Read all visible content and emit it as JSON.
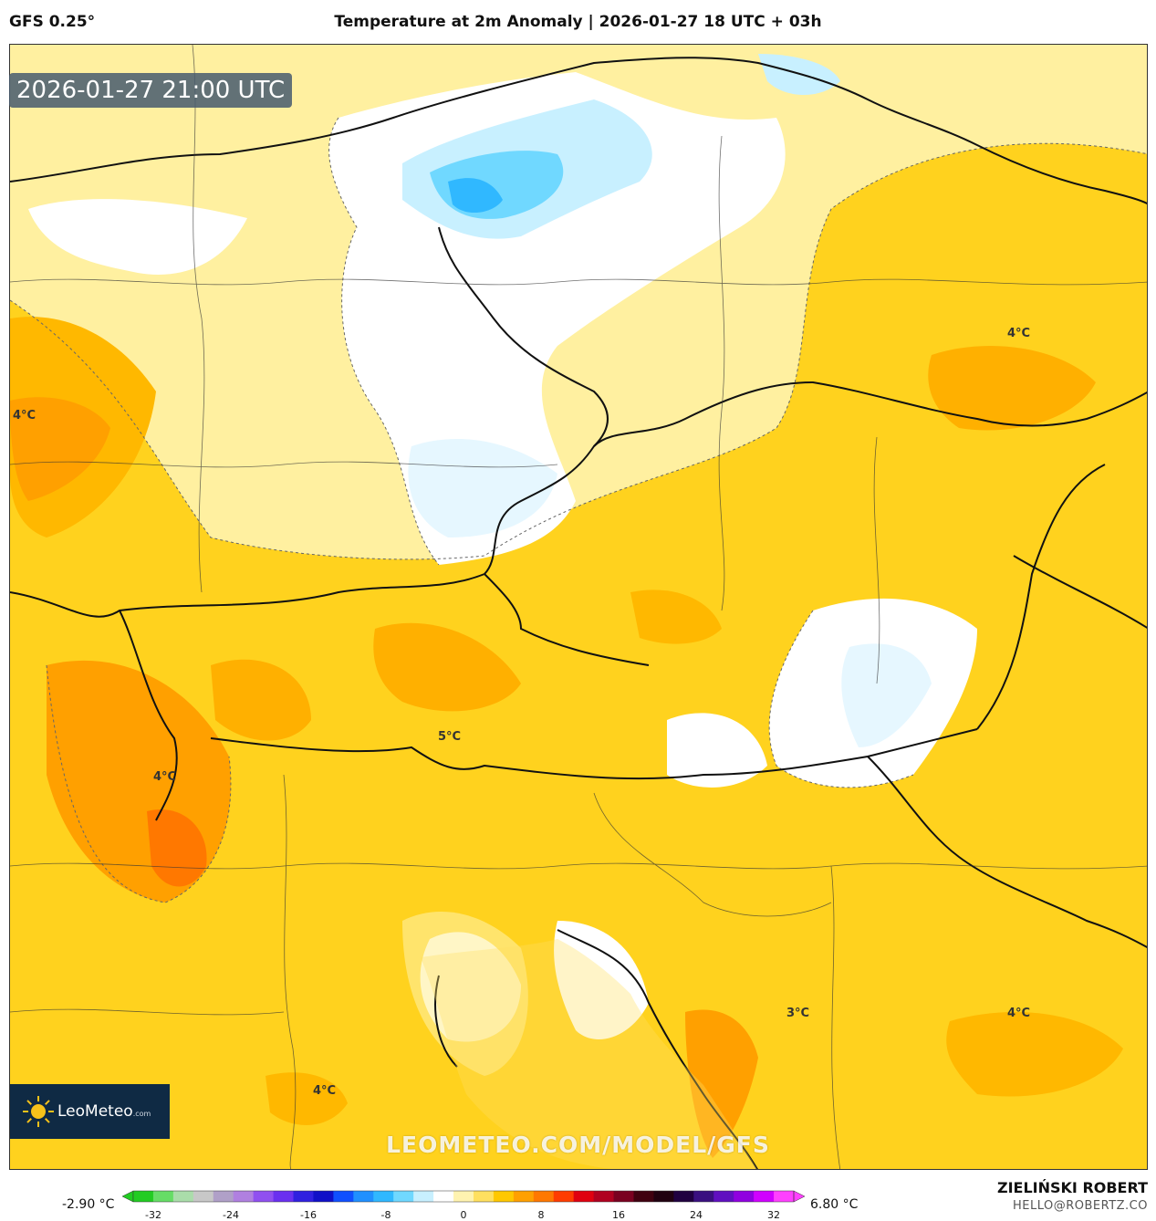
{
  "header": {
    "model": "GFS 0.25°",
    "title": "Temperature at 2m Anomaly | 2026-01-27 18 UTC + 03h"
  },
  "map": {
    "timestamp": "2026-01-27 21:00 UTC",
    "contour_labels": [
      "4°C",
      "4°C",
      "5°C",
      "4°C",
      "3°C",
      "4°C",
      "4°C"
    ],
    "watermark": "LEOMETEO.COM/MODEL/GFS",
    "logo": {
      "name": "LeoMeteo",
      "suffix": ".com"
    }
  },
  "colorbar": {
    "min_label": "-2.90 °C",
    "max_label": "6.80 °C",
    "ticks": [
      "-32",
      "-24",
      "-16",
      "-8",
      "0",
      "8",
      "16",
      "24",
      "32"
    ],
    "colors": [
      "#22cc22",
      "#66dd66",
      "#aaddaa",
      "#c8c8c8",
      "#b0a0c8",
      "#b080e0",
      "#9050f0",
      "#6a30f0",
      "#3020e0",
      "#1010c8",
      "#1050ff",
      "#2090ff",
      "#30b8ff",
      "#70d8ff",
      "#c8f0ff",
      "#ffffff",
      "#fff3b0",
      "#ffe060",
      "#ffc800",
      "#ffa000",
      "#ff7800",
      "#ff3c00",
      "#e00010",
      "#b00020",
      "#7a0020",
      "#400010",
      "#200010",
      "#200040",
      "#3a1080",
      "#6010c0",
      "#9000e0",
      "#d000ff",
      "#ff40ff"
    ]
  },
  "footer": {
    "author": "ZIELIŃSKI ROBERT",
    "email": "HELLO@ROBERTZ.CO"
  }
}
